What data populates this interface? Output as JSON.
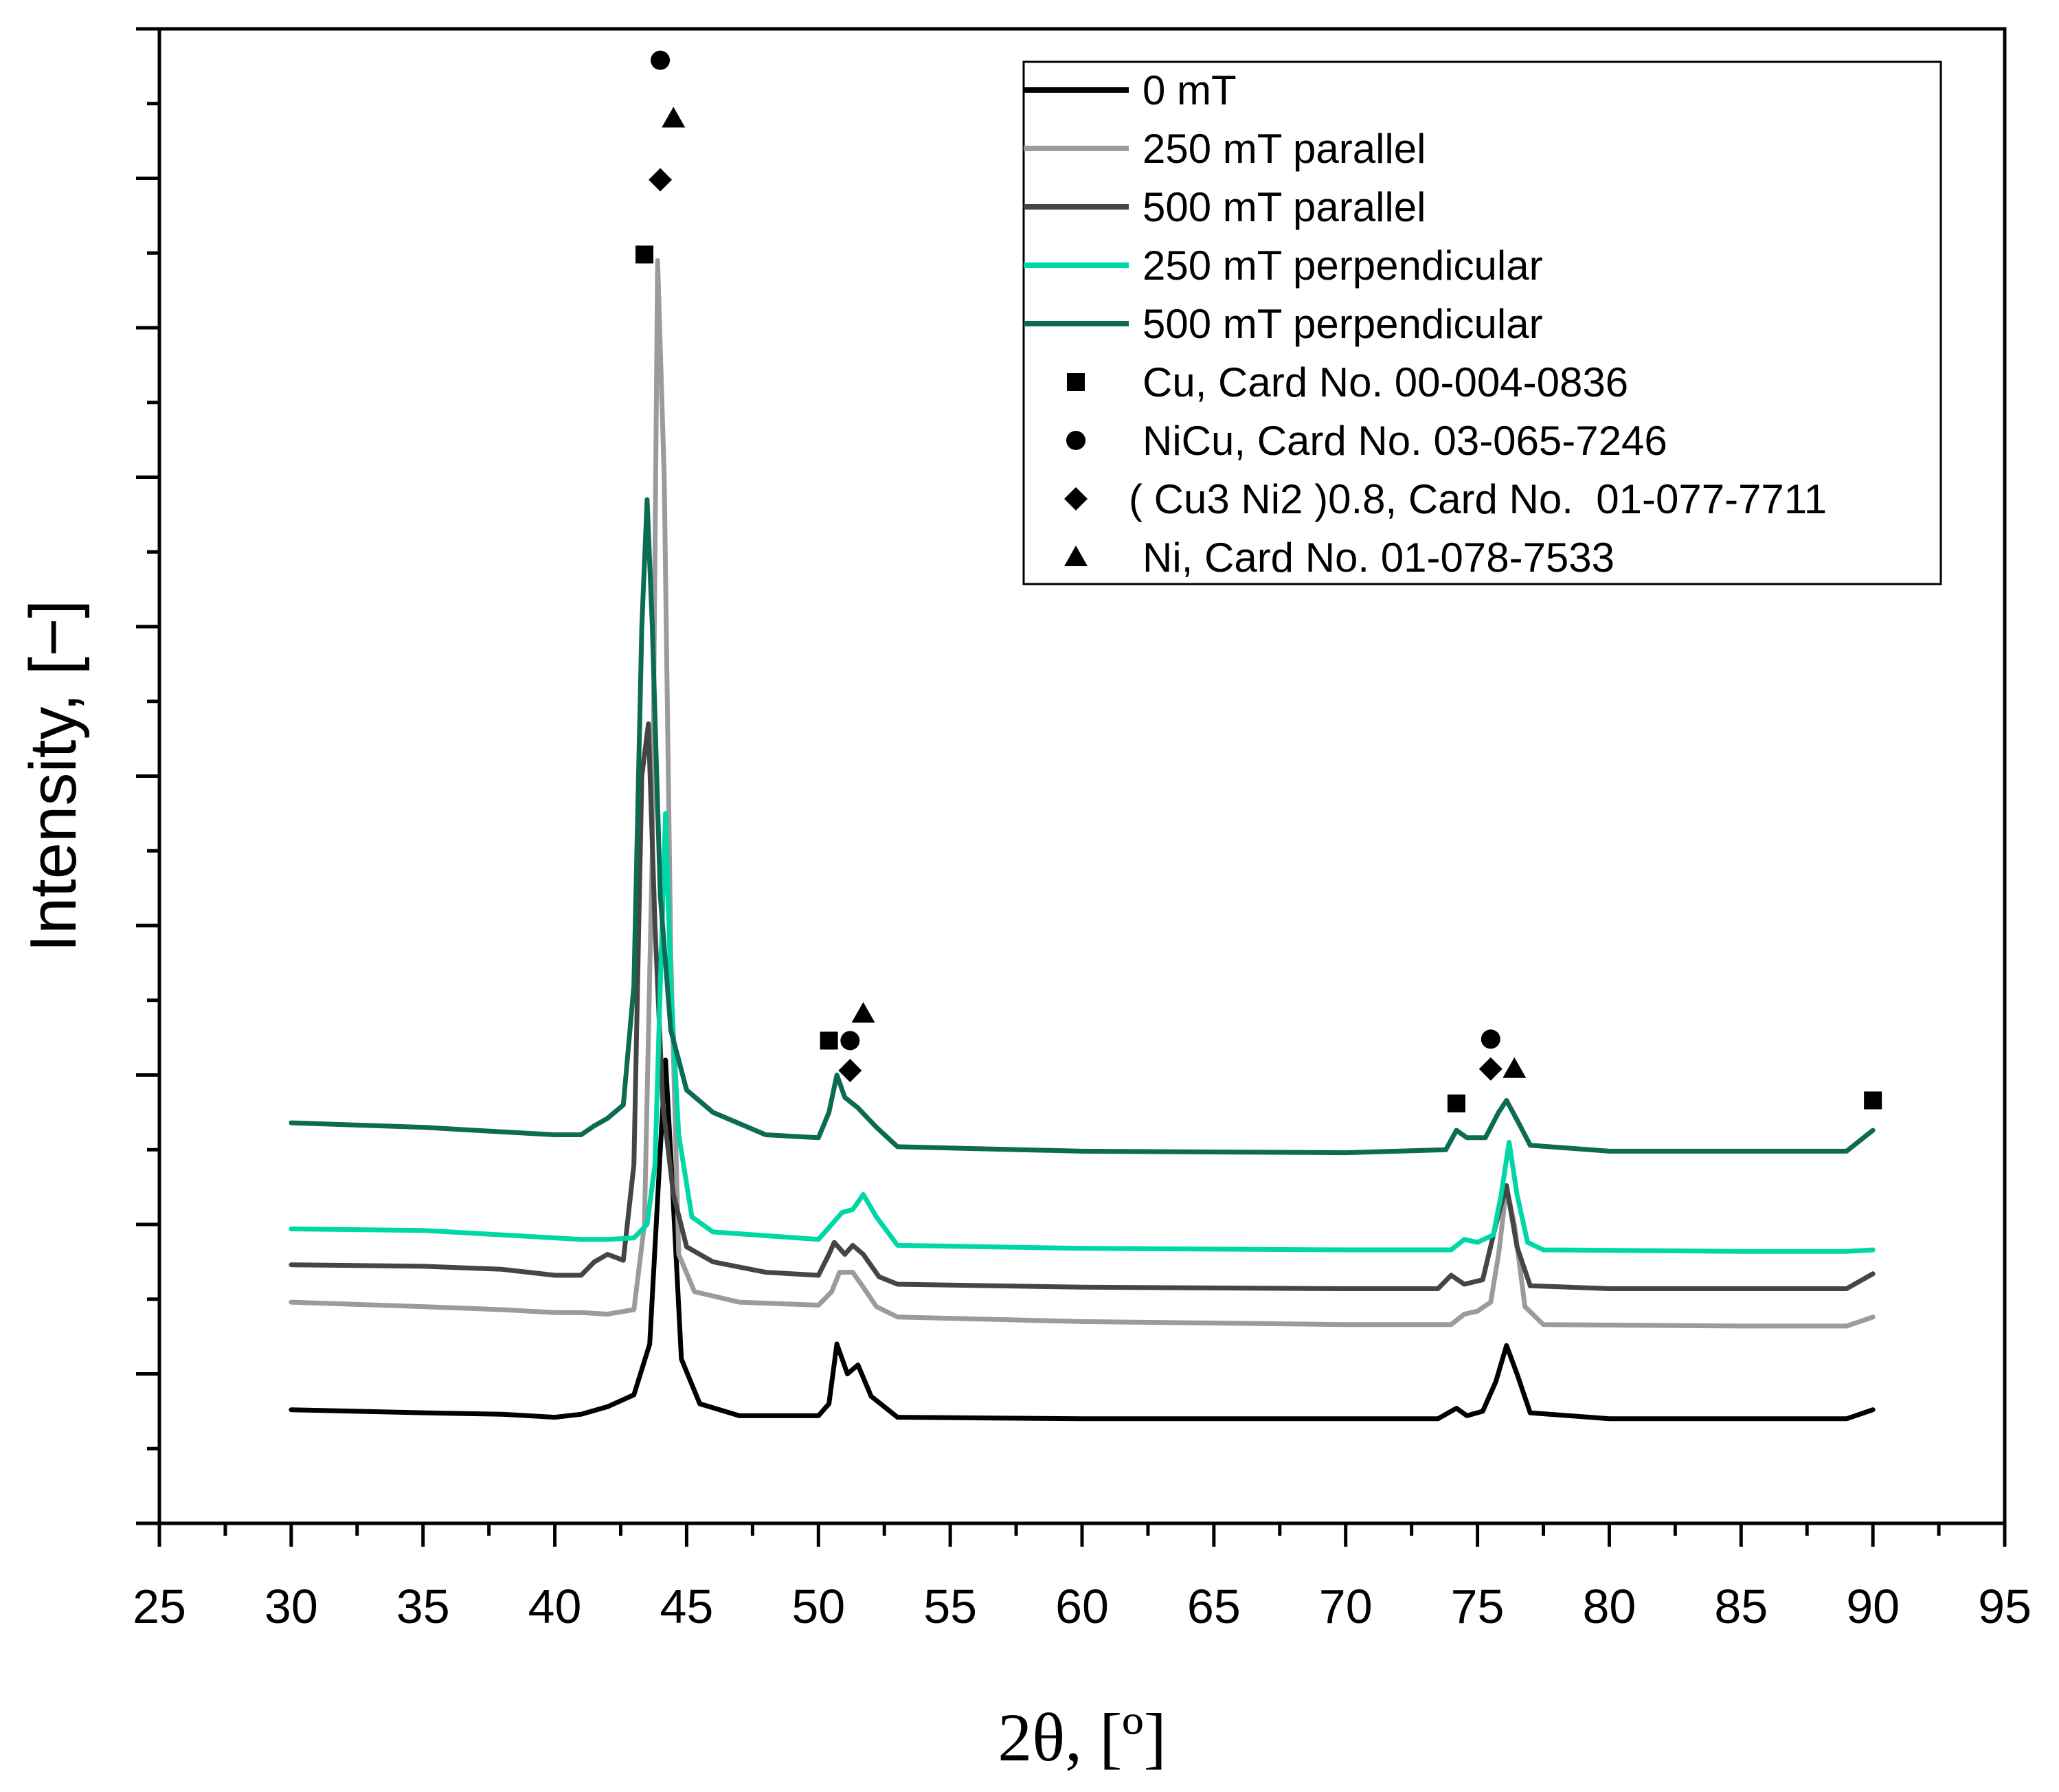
{
  "chart_data": {
    "type": "line",
    "title": "",
    "xlabel": "2θ, [º]",
    "ylabel": "Intensity, [−]",
    "xlim": [
      25,
      95
    ],
    "ylim": [
      0,
      100
    ],
    "x_ticks": [
      "25",
      "30",
      "35",
      "40",
      "45",
      "50",
      "55",
      "60",
      "65",
      "70",
      "75",
      "80",
      "85",
      "90",
      "95"
    ],
    "grid": false,
    "legend_position": "top-right",
    "series": [
      {
        "name": "0 mT",
        "color": "#000000",
        "points": [
          [
            30,
            7.6
          ],
          [
            35,
            7.4
          ],
          [
            38,
            7.3
          ],
          [
            40,
            7.1
          ],
          [
            41,
            7.3
          ],
          [
            42,
            7.8
          ],
          [
            43,
            8.6
          ],
          [
            43.6,
            12
          ],
          [
            44.0,
            25
          ],
          [
            44.2,
            31
          ],
          [
            44.45,
            23
          ],
          [
            44.8,
            11
          ],
          [
            45.5,
            8.0
          ],
          [
            47,
            7.2
          ],
          [
            50,
            7.2
          ],
          [
            50.4,
            8.0
          ],
          [
            50.7,
            12.0
          ],
          [
            51.1,
            10.0
          ],
          [
            51.5,
            10.6
          ],
          [
            52.0,
            8.5
          ],
          [
            53,
            7.1
          ],
          [
            60,
            7.0
          ],
          [
            70,
            7.0
          ],
          [
            73.5,
            7.0
          ],
          [
            74.2,
            7.7
          ],
          [
            74.6,
            7.2
          ],
          [
            75.2,
            7.5
          ],
          [
            75.7,
            9.5
          ],
          [
            76.1,
            11.9
          ],
          [
            76.5,
            10.0
          ],
          [
            77.0,
            7.4
          ],
          [
            80,
            7.0
          ],
          [
            85,
            7.0
          ],
          [
            89,
            7.0
          ],
          [
            90,
            7.6
          ]
        ]
      },
      {
        "name": "250 mT parallel",
        "color": "#9b9b9b",
        "points": [
          [
            30,
            14.8
          ],
          [
            35,
            14.5
          ],
          [
            38,
            14.3
          ],
          [
            40,
            14.1
          ],
          [
            41,
            14.1
          ],
          [
            42,
            14.0
          ],
          [
            43,
            14.3
          ],
          [
            43.4,
            20
          ],
          [
            43.7,
            45
          ],
          [
            43.9,
            84.5
          ],
          [
            44.15,
            70
          ],
          [
            44.4,
            38
          ],
          [
            44.7,
            18
          ],
          [
            45.3,
            15.5
          ],
          [
            47,
            14.8
          ],
          [
            50,
            14.6
          ],
          [
            50.5,
            15.5
          ],
          [
            50.8,
            16.8
          ],
          [
            51.3,
            16.8
          ],
          [
            51.7,
            15.8
          ],
          [
            52.2,
            14.5
          ],
          [
            53,
            13.8
          ],
          [
            60,
            13.5
          ],
          [
            70,
            13.3
          ],
          [
            74,
            13.3
          ],
          [
            74.5,
            14.0
          ],
          [
            75.0,
            14.2
          ],
          [
            75.5,
            14.8
          ],
          [
            75.8,
            18
          ],
          [
            76.1,
            22.5
          ],
          [
            76.4,
            20
          ],
          [
            76.8,
            14.5
          ],
          [
            77.5,
            13.3
          ],
          [
            85,
            13.2
          ],
          [
            89,
            13.2
          ],
          [
            90,
            13.8
          ]
        ]
      },
      {
        "name": "500 mT parallel",
        "color": "#454545",
        "points": [
          [
            30,
            17.3
          ],
          [
            35,
            17.2
          ],
          [
            38,
            17.0
          ],
          [
            40,
            16.6
          ],
          [
            41,
            16.6
          ],
          [
            41.5,
            17.5
          ],
          [
            42,
            18.0
          ],
          [
            42.6,
            17.6
          ],
          [
            43.0,
            24
          ],
          [
            43.3,
            50
          ],
          [
            43.55,
            53.5
          ],
          [
            43.8,
            40
          ],
          [
            44.1,
            28
          ],
          [
            44.5,
            22
          ],
          [
            45,
            18.5
          ],
          [
            46,
            17.5
          ],
          [
            48,
            16.8
          ],
          [
            50,
            16.6
          ],
          [
            50.4,
            18.0
          ],
          [
            50.6,
            18.8
          ],
          [
            51.0,
            18.0
          ],
          [
            51.3,
            18.6
          ],
          [
            51.7,
            18.0
          ],
          [
            52.3,
            16.5
          ],
          [
            53,
            16.0
          ],
          [
            60,
            15.8
          ],
          [
            70,
            15.7
          ],
          [
            73.5,
            15.7
          ],
          [
            74.0,
            16.6
          ],
          [
            74.5,
            16.0
          ],
          [
            75.2,
            16.3
          ],
          [
            75.7,
            20
          ],
          [
            76.1,
            22.6
          ],
          [
            76.5,
            18.5
          ],
          [
            77.0,
            15.9
          ],
          [
            80,
            15.7
          ],
          [
            85,
            15.7
          ],
          [
            89,
            15.7
          ],
          [
            90,
            16.7
          ]
        ]
      },
      {
        "name": "250 mT perpendicular",
        "color": "#00d7a6",
        "points": [
          [
            30,
            19.7
          ],
          [
            35,
            19.6
          ],
          [
            38,
            19.3
          ],
          [
            40,
            19.1
          ],
          [
            41,
            19.0
          ],
          [
            42,
            19.0
          ],
          [
            43,
            19.1
          ],
          [
            43.5,
            20
          ],
          [
            43.8,
            24
          ],
          [
            44.0,
            36
          ],
          [
            44.2,
            47.5
          ],
          [
            44.4,
            36
          ],
          [
            44.7,
            26
          ],
          [
            45.2,
            20.5
          ],
          [
            46,
            19.5
          ],
          [
            50,
            19.0
          ],
          [
            50.5,
            20.0
          ],
          [
            50.9,
            20.8
          ],
          [
            51.3,
            21.0
          ],
          [
            51.7,
            22.0
          ],
          [
            52.2,
            20.5
          ],
          [
            53,
            18.6
          ],
          [
            60,
            18.4
          ],
          [
            70,
            18.3
          ],
          [
            74,
            18.3
          ],
          [
            74.5,
            19.0
          ],
          [
            75.0,
            18.8
          ],
          [
            75.6,
            19.3
          ],
          [
            75.9,
            22
          ],
          [
            76.2,
            25.5
          ],
          [
            76.5,
            22
          ],
          [
            76.9,
            18.8
          ],
          [
            77.5,
            18.3
          ],
          [
            85,
            18.2
          ],
          [
            89,
            18.2
          ],
          [
            90,
            18.3
          ]
        ]
      },
      {
        "name": "500 mT perpendicular",
        "color": "#0b6b53",
        "points": [
          [
            30,
            26.8
          ],
          [
            35,
            26.5
          ],
          [
            38,
            26.2
          ],
          [
            40,
            26.0
          ],
          [
            41,
            26.0
          ],
          [
            41.5,
            26.6
          ],
          [
            42,
            27.1
          ],
          [
            42.6,
            28.0
          ],
          [
            43.0,
            36
          ],
          [
            43.3,
            60
          ],
          [
            43.5,
            68.5
          ],
          [
            43.7,
            60
          ],
          [
            44.0,
            42
          ],
          [
            44.4,
            33
          ],
          [
            45,
            29
          ],
          [
            46,
            27.5
          ],
          [
            48,
            26.0
          ],
          [
            50,
            25.8
          ],
          [
            50.4,
            27.5
          ],
          [
            50.7,
            30.0
          ],
          [
            51.0,
            28.5
          ],
          [
            51.5,
            27.8
          ],
          [
            52.2,
            26.5
          ],
          [
            53,
            25.2
          ],
          [
            60,
            24.9
          ],
          [
            70,
            24.8
          ],
          [
            73.8,
            25.0
          ],
          [
            74.2,
            26.3
          ],
          [
            74.6,
            25.8
          ],
          [
            75.3,
            25.8
          ],
          [
            75.8,
            27.5
          ],
          [
            76.1,
            28.3
          ],
          [
            76.5,
            27.0
          ],
          [
            77.0,
            25.3
          ],
          [
            80,
            24.9
          ],
          [
            85,
            24.9
          ],
          [
            89,
            24.9
          ],
          [
            90,
            26.3
          ]
        ]
      }
    ],
    "phase_markers": [
      {
        "name": "Cu, Card No. 00-004-0836",
        "shape": "square",
        "positions": [
          [
            43.4,
            84.9
          ],
          [
            50.4,
            32.3
          ],
          [
            74.2,
            28.1
          ],
          [
            90,
            28.3
          ]
        ]
      },
      {
        "name": "NiCu, Card No. 03-065-7246",
        "shape": "circle",
        "positions": [
          [
            44.0,
            97.9
          ],
          [
            51.2,
            32.3
          ],
          [
            75.5,
            32.4
          ]
        ]
      },
      {
        "name": "( Cu3 Ni2 )0.8, Card No.  01-077-7711",
        "shape": "diamond",
        "positions": [
          [
            44.0,
            89.9
          ],
          [
            51.2,
            30.3
          ],
          [
            75.5,
            30.4
          ]
        ]
      },
      {
        "name": "Ni, Card No. 01-078-7533",
        "shape": "triangle",
        "positions": [
          [
            44.5,
            94.0
          ],
          [
            51.7,
            34.1
          ],
          [
            76.4,
            30.4
          ]
        ]
      }
    ]
  }
}
